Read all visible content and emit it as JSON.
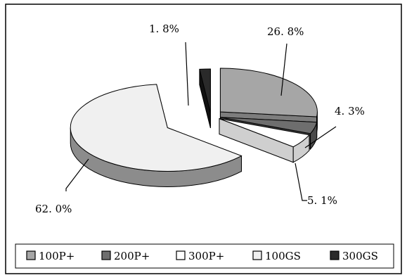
{
  "chart_data": {
    "type": "pie",
    "style": "3d-exploded",
    "title": "",
    "categories": [
      "100P+",
      "200P+",
      "300P+",
      "100GS",
      "300GS"
    ],
    "values": [
      26.8,
      4.3,
      5.1,
      62.0,
      1.8
    ],
    "value_labels": [
      "26. 8%",
      "4. 3%",
      "5. 1%",
      "62. 0%",
      "1. 8%"
    ],
    "colors": [
      "#a6a6a6",
      "#6e6e6e",
      "#ffffff",
      "#f0f0f0",
      "#2a2a2a"
    ],
    "legend": {
      "position": "bottom",
      "entries": [
        "100P+",
        "200P+",
        "300P+",
        "100GS",
        "300GS"
      ]
    }
  }
}
